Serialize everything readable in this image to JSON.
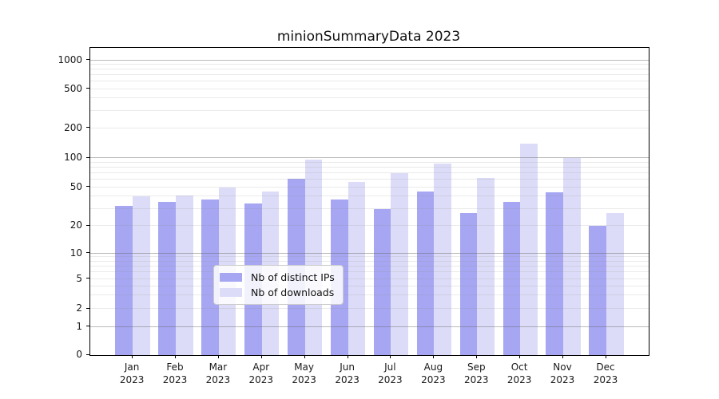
{
  "title": "minionSummaryData 2023",
  "chart_data": {
    "type": "bar",
    "title": "minionSummaryData 2023",
    "categories": [
      "Jan 2023",
      "Feb 2023",
      "Mar 2023",
      "Apr 2023",
      "May 2023",
      "Jun 2023",
      "Jul 2023",
      "Aug 2023",
      "Sep 2023",
      "Oct 2023",
      "Nov 2023",
      "Dec 2023"
    ],
    "series": [
      {
        "name": "Nb of distinct IPs",
        "color": "#a6a6f2",
        "values": [
          32,
          35,
          37,
          34,
          61,
          37,
          30,
          45,
          27,
          35,
          44,
          20
        ]
      },
      {
        "name": "Nb of downloads",
        "color": "#dcdcf8",
        "values": [
          40,
          41,
          50,
          45,
          97,
          57,
          70,
          87,
          62,
          140,
          100,
          27
        ]
      }
    ],
    "xlabel": "",
    "ylabel": "",
    "yscale": "symlog",
    "yticks": [
      0,
      1,
      2,
      5,
      10,
      20,
      50,
      100,
      200,
      500,
      1000
    ],
    "ylim": [
      0,
      1300
    ],
    "grid": "horizontal",
    "grid_over_bars": true,
    "legend_position": "lower-center-inside"
  }
}
